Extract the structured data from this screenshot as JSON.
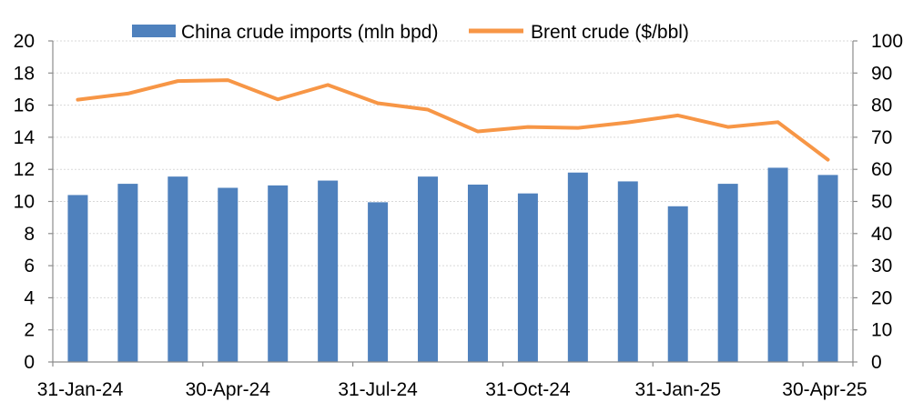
{
  "chart_data": {
    "type": "bar+line",
    "x": [
      "31-Jan-24",
      "29-Feb-24",
      "31-Mar-24",
      "30-Apr-24",
      "31-May-24",
      "30-Jun-24",
      "31-Jul-24",
      "31-Aug-24",
      "30-Sep-24",
      "31-Oct-24",
      "30-Nov-24",
      "31-Dec-24",
      "31-Jan-25",
      "28-Feb-25",
      "31-Mar-25",
      "30-Apr-25"
    ],
    "x_tick_labels": [
      "31-Jan-24",
      "30-Apr-24",
      "31-Jul-24",
      "31-Oct-24",
      "31-Jan-25",
      "30-Apr-25"
    ],
    "x_tick_labels_at": [
      "31-Jan-24",
      "30-Apr-24",
      "31-Jul-24",
      "31-Oct-24",
      "31-Jan-25",
      "30-Apr-25"
    ],
    "series": [
      {
        "name": "China crude imports (mln bpd)",
        "kind": "bar",
        "axis": "left",
        "color": "#4f81bd",
        "values": [
          10.4,
          11.1,
          11.55,
          10.85,
          11.0,
          11.3,
          9.95,
          11.55,
          11.05,
          10.5,
          11.8,
          11.25,
          9.7,
          11.1,
          12.1,
          11.65
        ]
      },
      {
        "name": "Brent crude ($/bbl)",
        "kind": "line",
        "axis": "right",
        "color": "#f79646",
        "values": [
          81.7,
          83.6,
          87.5,
          87.8,
          81.8,
          86.3,
          80.6,
          78.6,
          71.8,
          73.2,
          72.9,
          74.6,
          76.8,
          73.2,
          74.7,
          63.0
        ]
      }
    ],
    "left_axis": {
      "ylim": [
        0,
        20
      ],
      "ticks": [
        "0",
        "2",
        "4",
        "6",
        "8",
        "10",
        "12",
        "14",
        "16",
        "18",
        "20"
      ]
    },
    "right_axis": {
      "ylim": [
        0,
        100
      ],
      "ticks": [
        "0",
        "10",
        "20",
        "30",
        "40",
        "50",
        "60",
        "70",
        "80",
        "90",
        "100"
      ]
    },
    "grid": true,
    "legend_position": "top"
  }
}
